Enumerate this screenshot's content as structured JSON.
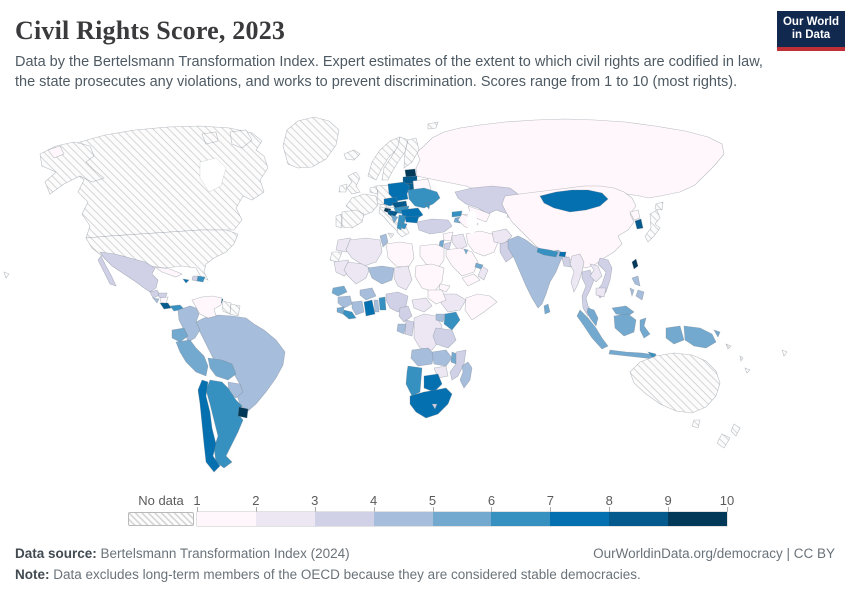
{
  "header": {
    "title": "Civil Rights Score, 2023",
    "subtitle": "Data by the Bertelsmann Transformation Index. Expert estimates of the extent to which civil rights are codified in law, the state prosecutes any violations, and works to prevent discrimination. Scores range from 1 to 10 (most rights).",
    "logo": {
      "line1": "Our World",
      "line2": "in Data",
      "bg_color": "#12294f",
      "accent_color": "#bf3036"
    }
  },
  "legend": {
    "no_data_label": "No data"
  },
  "footer": {
    "source_label": "Data source:",
    "source_text": "Bertelsmann Transformation Index (2024)",
    "link_text": "OurWorldinData.org/democracy | CC BY",
    "note_label": "Note:",
    "note_text": "Data excludes long-term members of the OECD because they are considered stable democracies."
  },
  "chart_data": {
    "type": "choropleth_map",
    "title": "Civil Rights Score, 2023",
    "value_range": [
      1,
      10
    ],
    "legend_ticks": [
      "1",
      "2",
      "3",
      "4",
      "5",
      "6",
      "7",
      "8",
      "9",
      "10"
    ],
    "bin_edges": [
      1,
      2,
      3,
      4,
      5,
      6,
      7,
      8,
      9,
      10
    ],
    "bin_colors": [
      "#fff7fb",
      "#ece7f2",
      "#d0d1e6",
      "#a6bddb",
      "#74a9cf",
      "#3690c0",
      "#0570b0",
      "#045a8d",
      "#023858"
    ],
    "no_data_pattern": "diagonal-hatch",
    "values": {
      "Mexico": 3,
      "Guatemala": 3,
      "Honduras": 3,
      "El Salvador": 4,
      "Nicaragua": 1,
      "Costa Rica": 8,
      "Panama": 6,
      "Cuba": 1,
      "Jamaica": 7,
      "Haiti": 3,
      "Dominican Republic": 6,
      "Trinidad and Tobago": 8,
      "Venezuela": 1,
      "Colombia": 4,
      "Ecuador": 5,
      "Peru": 5,
      "Brazil": 4,
      "Bolivia": 5,
      "Paraguay": 4,
      "Uruguay": 9,
      "Argentina": 6,
      "Chile": 7,
      "Estonia": 9,
      "Latvia": 8,
      "Lithuania": 8,
      "Belarus": 1,
      "Poland": 7,
      "Czechia": 7,
      "Slovakia": 8,
      "Hungary": 6,
      "Ukraine": 6,
      "Moldova": 6,
      "Romania": 7,
      "Serbia": 6,
      "Croatia": 8,
      "Bosnia and Herzegovina": 5,
      "Slovenia": 9,
      "Bulgaria": 7,
      "Albania": 6,
      "North Macedonia": 6,
      "Russia": 1,
      "Turkey": 3,
      "Georgia": 6,
      "Armenia": 5,
      "Azerbaijan": 1,
      "Kazakhstan": 3,
      "Uzbekistan": 1,
      "Turkmenistan": 1,
      "Kyrgyzstan": 3,
      "Tajikistan": 2,
      "Afghanistan": 2,
      "Pakistan": 3,
      "Syria": 1,
      "Israel": 5,
      "Jordan": 3,
      "Iraq": 2,
      "Saudi Arabia": 1,
      "Yemen": 1,
      "Oman": 2,
      "United Arab Emirates": 5,
      "Kuwait": 5,
      "Iran": 1,
      "Morocco": 2,
      "Algeria": 2,
      "Tunisia": 4,
      "Libya": 1,
      "Egypt": 1,
      "Mauritania": 2,
      "Mali": 2,
      "Niger": 4,
      "Chad": 2,
      "Sudan": 1,
      "Eritrea": 1,
      "Ethiopia": 2,
      "Somalia": 1,
      "Senegal": 5,
      "Guinea": 4,
      "Sierra Leone": 5,
      "Liberia": 6,
      "Ivory Coast": 4,
      "Burkina Faso": 4,
      "Ghana": 7,
      "Togo": 4,
      "Benin": 6,
      "Nigeria": 3,
      "Cameroon": 3,
      "Central African Republic": 2,
      "South Sudan": 1,
      "Democratic Republic of Congo": 2,
      "Congo": 3,
      "Gabon": 4,
      "Uganda": 4,
      "Kenya": 6,
      "Tanzania": 3,
      "Angola": 4,
      "Zambia": 4,
      "Malawi": 5,
      "Mozambique": 3,
      "Zimbabwe": 2,
      "Botswana": 7,
      "Namibia": 6,
      "South Africa": 7,
      "Lesotho": 3,
      "Madagascar": 4,
      "China": 1,
      "Mongolia": 7,
      "North Korea": 1,
      "South Korea": 8,
      "Taiwan": 9,
      "India": 4,
      "Nepal": 6,
      "Bhutan": 7,
      "Bangladesh": 3,
      "Sri Lanka": 5,
      "Myanmar": 2,
      "Thailand": 3,
      "Laos": 2,
      "Vietnam": 3,
      "Cambodia": 2,
      "Malaysia": 5,
      "Philippines": 4,
      "Indonesia": 5,
      "Timor-Leste": 6,
      "Papua New Guinea": 5
    },
    "no_data_regions": [
      "United States",
      "Canada",
      "Greenland",
      "Iceland",
      "Ireland",
      "United Kingdom",
      "Norway",
      "Sweden",
      "Finland",
      "Denmark",
      "Netherlands",
      "Germany",
      "France",
      "Switzerland",
      "Austria",
      "Portugal",
      "Spain",
      "Italy",
      "Greece",
      "Japan",
      "Australia",
      "New Zealand",
      "Guyana",
      "Suriname",
      "Western Sahara",
      "Fiji",
      "Solomon Islands",
      "Vanuatu",
      "New Caledonia"
    ]
  }
}
